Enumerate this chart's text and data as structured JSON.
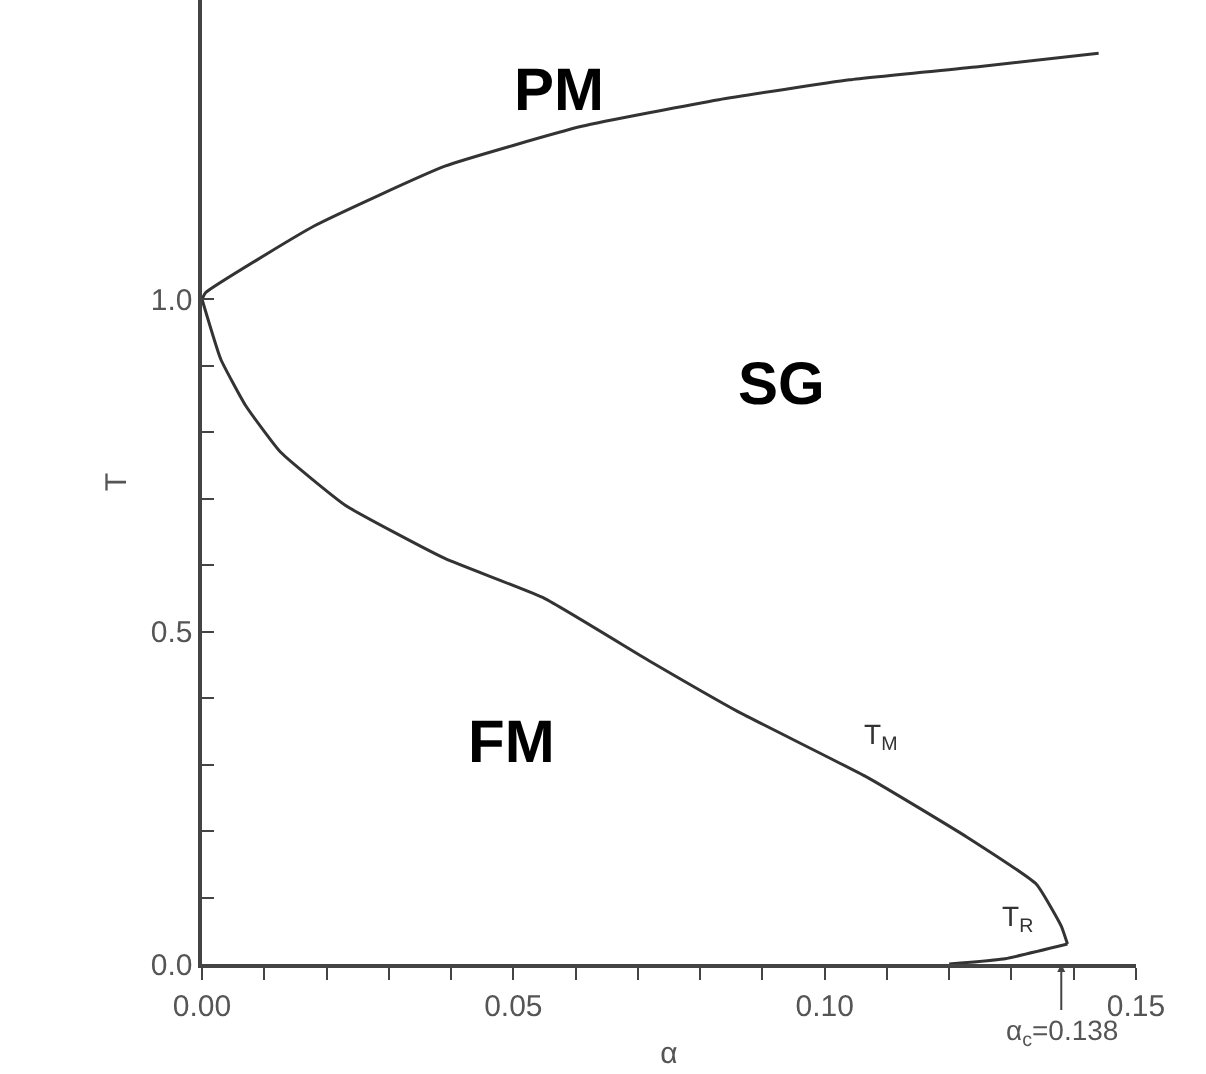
{
  "chart_data": {
    "type": "line",
    "xlabel": "α",
    "ylabel": "T",
    "xlim": [
      0,
      0.15
    ],
    "ylim": [
      0,
      1.45
    ],
    "xticks": [
      {
        "value": 0,
        "label": "0.00"
      },
      {
        "value": 0.01,
        "label": null
      },
      {
        "value": 0.02,
        "label": null
      },
      {
        "value": 0.03,
        "label": null
      },
      {
        "value": 0.04,
        "label": null
      },
      {
        "value": 0.05,
        "label": "0.05"
      },
      {
        "value": 0.06,
        "label": null
      },
      {
        "value": 0.07,
        "label": null
      },
      {
        "value": 0.08,
        "label": null
      },
      {
        "value": 0.09,
        "label": null
      },
      {
        "value": 0.1,
        "label": "0.10"
      },
      {
        "value": 0.11,
        "label": null
      },
      {
        "value": 0.12,
        "label": null
      },
      {
        "value": 0.13,
        "label": null
      },
      {
        "value": 0.14,
        "label": null
      },
      {
        "value": 0.15,
        "label": "0.15"
      }
    ],
    "yticks": [
      {
        "value": 0,
        "label": "0.0"
      },
      {
        "value": 0.1,
        "label": null
      },
      {
        "value": 0.2,
        "label": null
      },
      {
        "value": 0.3,
        "label": null
      },
      {
        "value": 0.4,
        "label": null
      },
      {
        "value": 0.5,
        "label": "0.5"
      },
      {
        "value": 0.6,
        "label": null
      },
      {
        "value": 0.7,
        "label": null
      },
      {
        "value": 0.8,
        "label": null
      },
      {
        "value": 0.9,
        "label": null
      },
      {
        "value": 1.0,
        "label": "1.0"
      }
    ],
    "series": [
      {
        "color": "#333333",
        "x": [
          0,
          0.0006,
          0.018,
          0.039,
          0.061,
          0.083,
          0.104,
          0.125,
          0.144
        ],
        "values": [
          1.0,
          1.01,
          1.11,
          1.2,
          1.26,
          1.3,
          1.33,
          1.35,
          1.37
        ]
      },
      {
        "name": "T$_{M}$",
        "color": "#333333",
        "x": [
          0,
          0.003,
          0.007,
          0.0126,
          0.023,
          0.039,
          0.055,
          0.072,
          0.086,
          0.107,
          0.123,
          0.134,
          0.138,
          0.139
        ],
        "values": [
          1.0,
          0.91,
          0.84,
          0.77,
          0.69,
          0.61,
          0.55,
          0.455,
          0.38,
          0.28,
          0.19,
          0.12,
          0.057,
          0.03
        ]
      },
      {
        "name": "T$_{R}$",
        "color": "#333333",
        "x": [
          0.12,
          0.129,
          0.139
        ],
        "values": [
          0.0,
          0.008,
          0.03
        ]
      }
    ],
    "annotations": [
      "PM",
      "SG",
      "FM",
      {
        "text": "α$_{c}$=0.138",
        "x": 0.138,
        "y": 0
      }
    ],
    "legend": false,
    "marker": "none",
    "line_style": "solid"
  }
}
